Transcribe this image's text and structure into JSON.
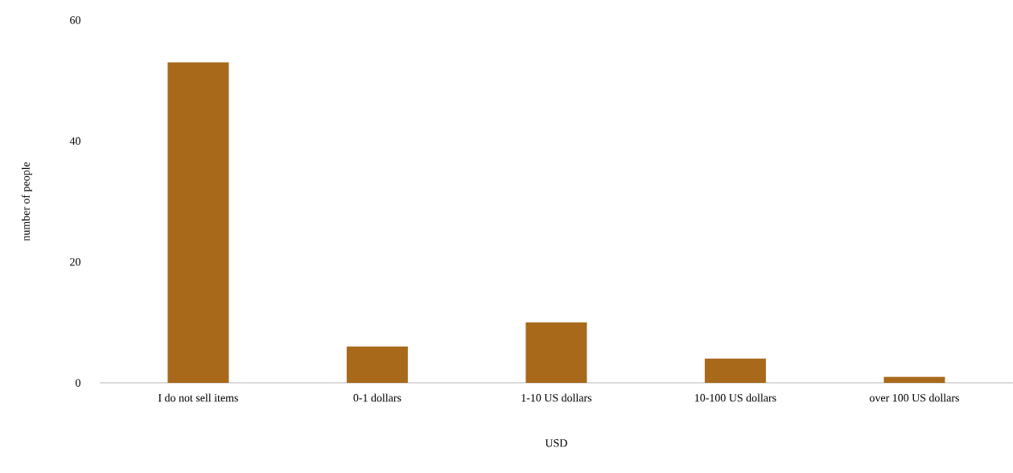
{
  "chart_data": {
    "type": "bar",
    "xlabel": "USD",
    "ylabel": "number of people",
    "categories": [
      "I do not sell items",
      "0-1 dollars",
      "1-10 US dollars",
      "10-100 US dollars",
      "over 100 US dollars"
    ],
    "values": [
      53,
      6,
      10,
      4,
      1
    ],
    "color": "#a8691b",
    "ylim": [
      0,
      60
    ],
    "yticks": [
      0,
      20,
      40,
      60
    ]
  }
}
